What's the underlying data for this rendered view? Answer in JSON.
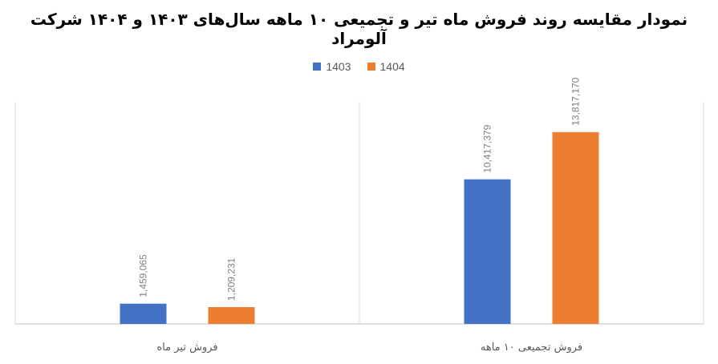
{
  "chart_data": {
    "type": "bar",
    "title": "نمودار مقایسه روند فروش ماه تیر و تجمیعی ۱۰ ماهه سال‌های ۱۴۰۳ و ۱۴۰۴ شرکت آلومراد",
    "categories": [
      "فروش تیر ماه",
      "فروش تجمیعی ۱۰ ماهه"
    ],
    "series": [
      {
        "name": "1403",
        "values": [
          1459065,
          10417379
        ],
        "labels": [
          "1,459,065",
          "10,417,379"
        ],
        "color": "#4472C4"
      },
      {
        "name": "1404",
        "values": [
          1209231,
          13817170
        ],
        "labels": [
          "1,209,231",
          "13,817,170"
        ],
        "color": "#ED7D31"
      }
    ],
    "ylim": [
      0,
      16000000
    ],
    "legend_position": "top",
    "grid": false
  }
}
